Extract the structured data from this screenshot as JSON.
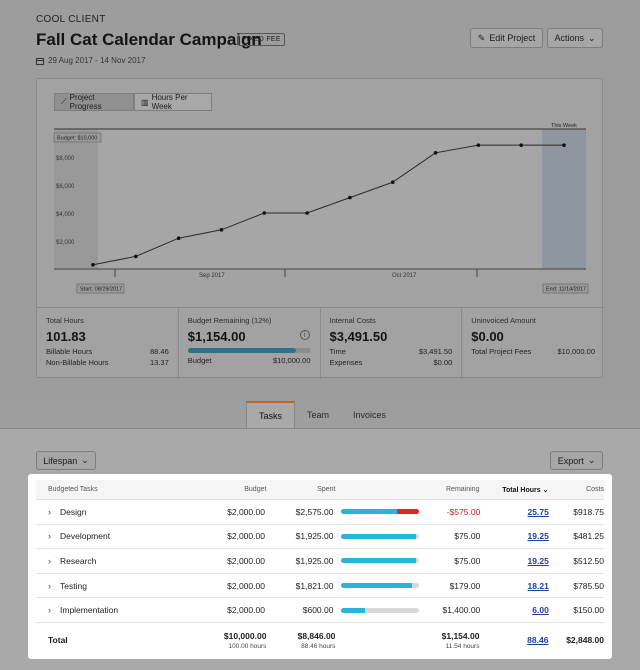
{
  "header": {
    "client": "COOL CLIENT",
    "title": "Fall Cat Calendar Campaign",
    "badge": "FIXED FEE",
    "dates": "29 Aug 2017 - 14 Nov 2017",
    "edit_label": "Edit Project",
    "actions_label": "Actions"
  },
  "chart_toggle": {
    "progress_label": "Project Progress",
    "hours_label": "Hours Per Week"
  },
  "chart_data": {
    "type": "line",
    "budget_label": "Budget: $10,000",
    "this_week_label": "This Week",
    "start_label": "Start: 08/29/2017",
    "end_label": "End: 11/14/2017",
    "month_labels": [
      "Sep 2017",
      "Oct 2017"
    ],
    "y_ticks": [
      "$2,000",
      "$4,000",
      "$6,000",
      "$8,000"
    ],
    "y_tick_values": [
      2000,
      4000,
      6000,
      8000
    ],
    "ylim": [
      0,
      10000
    ],
    "budget": 10000,
    "x_points": 12,
    "values": [
      300,
      900,
      2200,
      2800,
      4000,
      4000,
      5100,
      6200,
      8300,
      8846,
      8846,
      8846
    ]
  },
  "stats": {
    "total_hours": {
      "label": "Total Hours",
      "value": "101.83",
      "rows": [
        [
          "Billable Hours",
          "88.46"
        ],
        [
          "Non-Billable Hours",
          "13.37"
        ]
      ]
    },
    "budget_remaining": {
      "label": "Budget Remaining (12%)",
      "value": "$1,154.00",
      "info": "i",
      "fraction": 0.88,
      "budget_label": "Budget",
      "budget_value": "$10,000.00"
    },
    "internal_costs": {
      "label": "Internal Costs",
      "value": "$3,491.50",
      "rows": [
        [
          "Time",
          "$3,491.50"
        ],
        [
          "Expenses",
          "$0.00"
        ]
      ]
    },
    "uninvoiced": {
      "label": "Uninvoiced Amount",
      "value": "$0.00",
      "rows": [
        [
          "Total Project Fees",
          "$10,000.00"
        ]
      ]
    }
  },
  "tabs": [
    "Tasks",
    "Team",
    "Invoices"
  ],
  "filters": {
    "lifespan": "Lifespan",
    "export": "Export"
  },
  "table": {
    "headers": {
      "name": "Budgeted Tasks",
      "budget": "Budget",
      "spent": "Spent",
      "remaining": "Remaining",
      "hours": "Total Hours",
      "costs": "Costs"
    },
    "rows": [
      {
        "name": "Design",
        "budget": "$2,000.00",
        "spent": "$2,575.00",
        "progress": 1.0,
        "over": 0.29,
        "remaining": "-$575.00",
        "negative": true,
        "hours": "25.75",
        "costs": "$918.75"
      },
      {
        "name": "Development",
        "budget": "$2,000.00",
        "spent": "$1,925.00",
        "progress": 0.96,
        "over": 0,
        "remaining": "$75.00",
        "negative": false,
        "hours": "19.25",
        "costs": "$481.25"
      },
      {
        "name": "Research",
        "budget": "$2,000.00",
        "spent": "$1,925.00",
        "progress": 0.96,
        "over": 0,
        "remaining": "$75.00",
        "negative": false,
        "hours": "19.25",
        "costs": "$512.50"
      },
      {
        "name": "Testing",
        "budget": "$2,000.00",
        "spent": "$1,821.00",
        "progress": 0.91,
        "over": 0,
        "remaining": "$179.00",
        "negative": false,
        "hours": "18.21",
        "costs": "$785.50"
      },
      {
        "name": "Implementation",
        "budget": "$2,000.00",
        "spent": "$600.00",
        "progress": 0.3,
        "over": 0,
        "remaining": "$1,400.00",
        "negative": false,
        "hours": "6.00",
        "costs": "$150.00"
      }
    ],
    "total": {
      "label": "Total",
      "budget": "$10,000.00",
      "budget_hours": "100.00 hours",
      "spent": "$8,846.00",
      "spent_hours": "88.46 hours",
      "remaining": "$1,154.00",
      "remaining_hours": "11.54 hours",
      "hours": "88.46",
      "costs": "$2,848.00"
    }
  }
}
